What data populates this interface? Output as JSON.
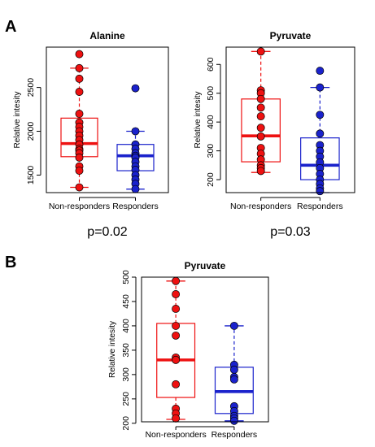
{
  "figure": {
    "panel_a_label": "A",
    "panel_b_label": "B"
  },
  "colors": {
    "non_responders": "#ee1111",
    "responders": "#1a22cc",
    "point_edge": "#000000"
  },
  "chart_data": [
    {
      "type": "box",
      "panel": "A",
      "title": "Alanine",
      "ylabel": "Relative intesity",
      "ylim": [
        1300,
        2960
      ],
      "yticks": [
        1500,
        2000,
        2500
      ],
      "categories": [
        "Non-responders",
        "Responders"
      ],
      "annotation": "p=0.02",
      "series": [
        {
          "name": "Non-responders",
          "color": "#ee1111",
          "box": {
            "min": 1360,
            "q1": 1710,
            "median": 1860,
            "q3": 2150,
            "max": 2720
          },
          "points": [
            2880,
            2720,
            2600,
            2450,
            2200,
            2100,
            2050,
            2000,
            1950,
            1900,
            1850,
            1800,
            1780,
            1750,
            1700,
            1600,
            1550,
            1360
          ]
        },
        {
          "name": "Responders",
          "color": "#1a22cc",
          "box": {
            "min": 1340,
            "q1": 1550,
            "median": 1720,
            "q3": 1850,
            "max": 2000
          },
          "points": [
            2490,
            2000,
            1850,
            1800,
            1750,
            1720,
            1700,
            1650,
            1600,
            1560,
            1500,
            1450,
            1400,
            1340
          ]
        }
      ]
    },
    {
      "type": "box",
      "panel": "A",
      "title": "Pyruvate",
      "ylabel": "Relative intesity",
      "ylim": [
        155,
        660
      ],
      "yticks": [
        200,
        300,
        400,
        500,
        600
      ],
      "categories": [
        "Non-responders",
        "Responders"
      ],
      "annotation": "p=0.03",
      "series": [
        {
          "name": "Non-responders",
          "color": "#ee1111",
          "box": {
            "min": 225,
            "q1": 262,
            "median": 352,
            "q3": 480,
            "max": 645
          },
          "points": [
            645,
            510,
            500,
            480,
            450,
            420,
            380,
            350,
            310,
            290,
            270,
            250,
            240,
            230
          ]
        },
        {
          "name": "Responders",
          "color": "#1a22cc",
          "box": {
            "min": 155,
            "q1": 200,
            "median": 250,
            "q3": 345,
            "max": 520
          },
          "points": [
            578,
            520,
            425,
            360,
            320,
            300,
            280,
            260,
            240,
            220,
            200,
            185,
            170,
            160
          ]
        }
      ]
    },
    {
      "type": "box",
      "panel": "B",
      "title": "Pyruvate",
      "ylabel": "Relative intesity",
      "ylim": [
        203,
        500
      ],
      "yticks": [
        200,
        250,
        300,
        350,
        400,
        450,
        500
      ],
      "categories": [
        "Non-responders",
        "Responders"
      ],
      "annotation": "",
      "series": [
        {
          "name": "Non-responders",
          "color": "#ee1111",
          "box": {
            "min": 208,
            "q1": 253,
            "median": 330,
            "q3": 405,
            "max": 492
          },
          "points": [
            492,
            465,
            435,
            400,
            380,
            335,
            330,
            280,
            230,
            220,
            210
          ]
        },
        {
          "name": "Responders",
          "color": "#1a22cc",
          "box": {
            "min": 205,
            "q1": 220,
            "median": 265,
            "q3": 315,
            "max": 400
          },
          "points": [
            400,
            320,
            310,
            295,
            290,
            235,
            225,
            215,
            210,
            205
          ]
        }
      ]
    }
  ]
}
